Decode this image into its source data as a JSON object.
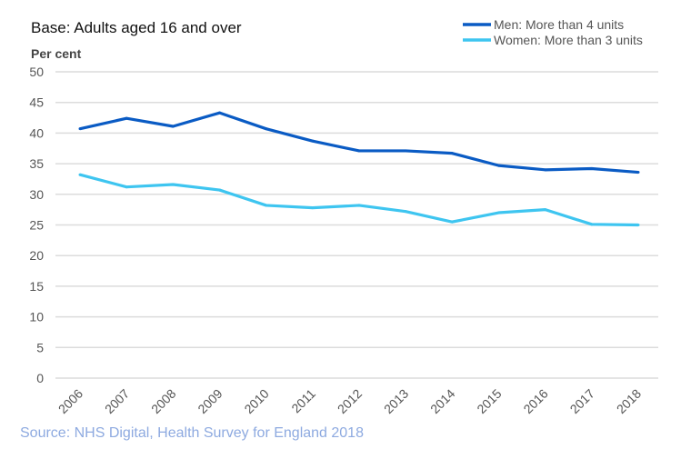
{
  "chart_data": {
    "type": "line",
    "title": "Base: Adults aged 16 and over",
    "ylabel": "Per cent",
    "xlabel": "",
    "ylim": [
      0,
      50
    ],
    "yticks": [
      0,
      5,
      10,
      15,
      20,
      25,
      30,
      35,
      40,
      45,
      50
    ],
    "categories": [
      "2006",
      "2007",
      "2008",
      "2009",
      "2010",
      "2011",
      "2012",
      "2013",
      "2014",
      "2015",
      "2016",
      "2017",
      "2018"
    ],
    "grid": true,
    "legend_position": "top-right",
    "series": [
      {
        "name": "Men: More than 4 units",
        "color": "#0a5bc4",
        "values": [
          40.7,
          42.4,
          41.1,
          43.3,
          40.7,
          38.7,
          37.1,
          37.1,
          36.7,
          34.7,
          34.0,
          34.2,
          33.6
        ]
      },
      {
        "name": "Women: More than 3 units",
        "color": "#3ec5f0",
        "values": [
          33.2,
          31.2,
          31.6,
          30.7,
          28.2,
          27.8,
          28.2,
          27.2,
          25.5,
          27.0,
          27.5,
          25.1,
          25.0
        ]
      }
    ],
    "source": "Source: NHS Digital, Health Survey for England 2018"
  }
}
